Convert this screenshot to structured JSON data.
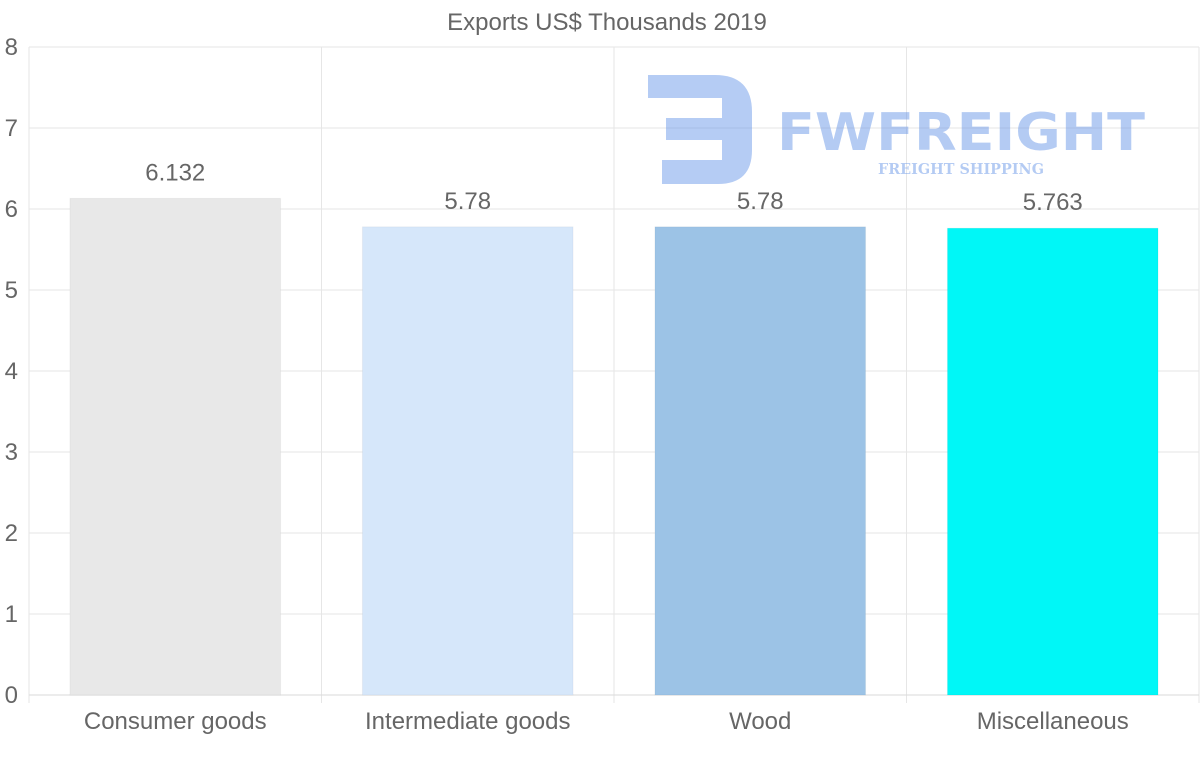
{
  "chart_data": {
    "type": "bar",
    "title": "Exports US$ Thousands 2019",
    "categories": [
      "Consumer goods",
      "Intermediate goods",
      "Wood",
      "Miscellaneous"
    ],
    "values": [
      6.132,
      5.78,
      5.78,
      5.763
    ],
    "value_labels": [
      "6.132",
      "5.78",
      "5.78",
      "5.763"
    ],
    "colors": [
      "#e8e8e8",
      "#d6e7fa",
      "#9cc3e6",
      "#00f7f7"
    ],
    "ylim": [
      0,
      8
    ],
    "yticks": [
      0,
      1,
      2,
      3,
      4,
      5,
      6,
      7,
      8
    ],
    "grid": true,
    "xlabel": "",
    "ylabel": ""
  },
  "watermark": {
    "brand": "FWFREIGHT",
    "tagline": "FREIGHT SHIPPING",
    "color": "#5b8de6"
  }
}
